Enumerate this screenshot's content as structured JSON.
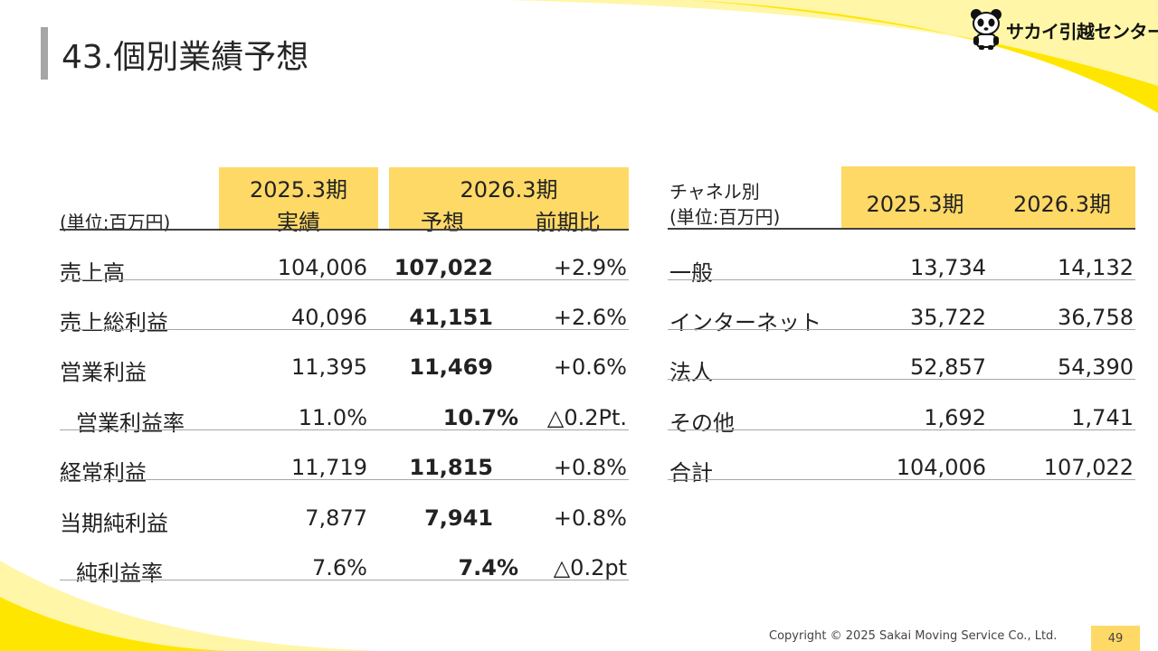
{
  "slide": {
    "title": "43.個別業績予想",
    "logo_text": "サカイ引越センター",
    "copyright": "Copyright © 2025 Sakai Moving Service Co., Ltd.",
    "page_number": "49"
  },
  "left_table": {
    "unit_label": "(単位:百万円)",
    "headers": {
      "fy2025_period": "2025.3期",
      "fy2025_sub": "実績",
      "fy2026_period": "2026.3期",
      "fy2026_sub_forecast": "予想",
      "fy2026_sub_yoy": "前期比"
    },
    "rows": [
      {
        "label": "売上高",
        "actual": "104,006",
        "forecast": "107,022",
        "yoy": "+2.9%"
      },
      {
        "label": "売上総利益",
        "actual": "40,096",
        "forecast": "41,151",
        "yoy": "+2.6%"
      },
      {
        "label": "営業利益",
        "actual": "11,395",
        "forecast": "11,469",
        "yoy": "+0.6%"
      },
      {
        "label": "営業利益率",
        "actual": "11.0%",
        "forecast": "10.7%",
        "yoy": "△0.2Pt."
      },
      {
        "label": "経常利益",
        "actual": "11,719",
        "forecast": "11,815",
        "yoy": "+0.8%"
      },
      {
        "label": "当期純利益",
        "actual": "7,877",
        "forecast": "7,941",
        "yoy": "+0.8%"
      },
      {
        "label": "純利益率",
        "actual": "7.6%",
        "forecast": "7.4%",
        "yoy": "△0.2pt"
      }
    ]
  },
  "right_table": {
    "header_label_line1": "チャネル別",
    "header_label_line2": "(単位:百万円)",
    "col1": "2025.3期",
    "col2": "2026.3期",
    "rows": [
      {
        "label": "一般",
        "v2025": "13,734",
        "v2026": "14,132"
      },
      {
        "label": "インターネット",
        "v2025": "35,722",
        "v2026": "36,758"
      },
      {
        "label": "法人",
        "v2025": "52,857",
        "v2026": "54,390"
      },
      {
        "label": "その他",
        "v2025": "1,692",
        "v2026": "1,741"
      },
      {
        "label": "合計",
        "v2025": "104,006",
        "v2026": "107,022"
      }
    ]
  },
  "colors": {
    "accent_yellow": "#ffd966",
    "swoosh_yellow": "#ffe600",
    "rule_gray": "#a6a6a6"
  }
}
